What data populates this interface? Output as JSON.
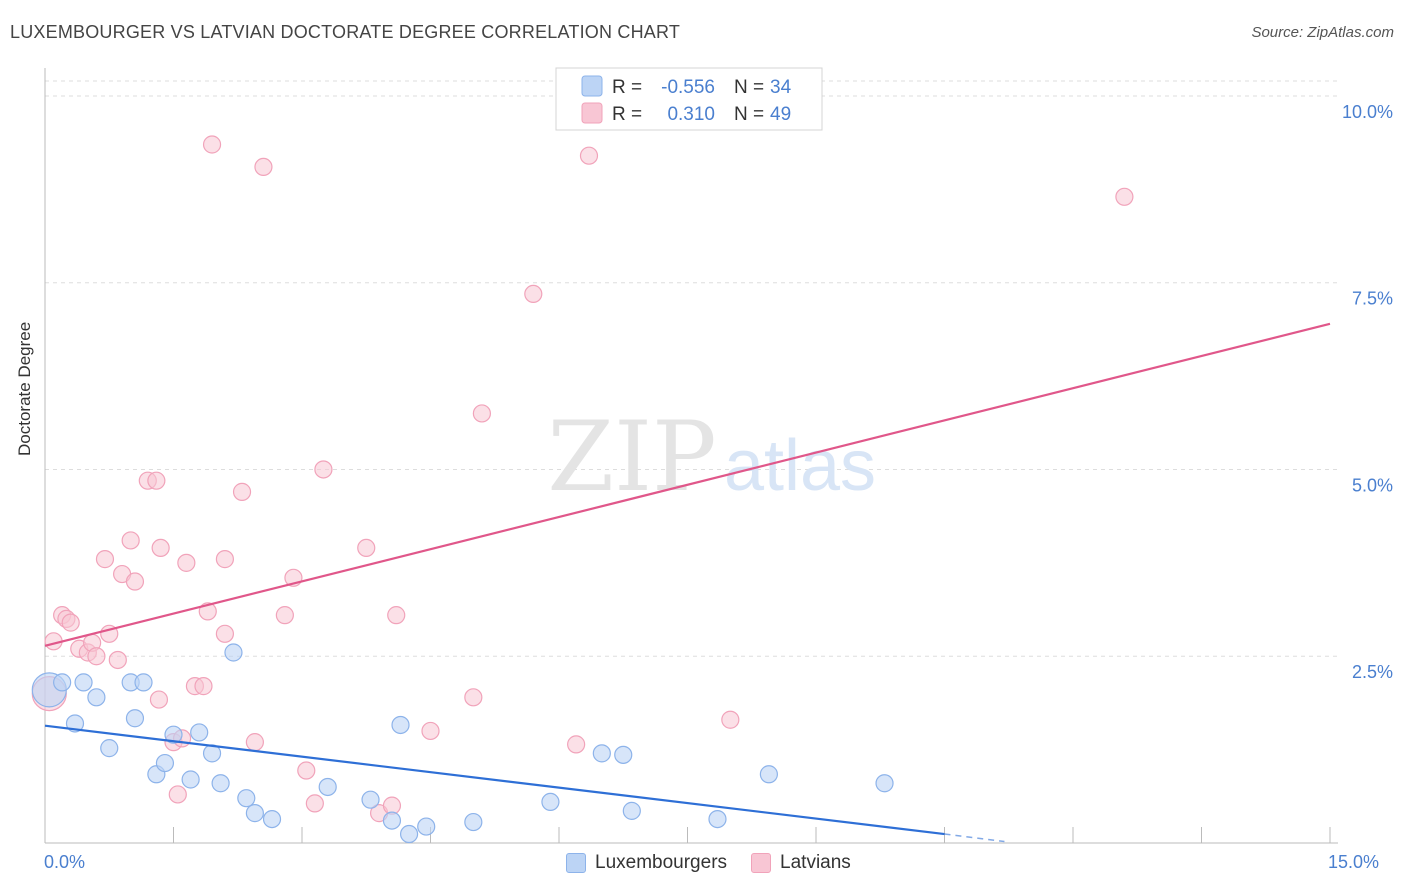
{
  "header": {
    "title": "LUXEMBOURGER VS LATVIAN DOCTORATE DEGREE CORRELATION CHART",
    "source": "Source: ZipAtlas.com"
  },
  "watermark": {
    "zip": "ZIP",
    "atlas": "atlas"
  },
  "colors": {
    "blue_fill": "#bcd4f5",
    "blue_stroke": "#8db3ea",
    "blue_line": "#2e6fd6",
    "pink_fill": "#f8c6d4",
    "pink_stroke": "#f1a3ba",
    "pink_line": "#e0578a",
    "axis_label": "#4a7fcf",
    "grid": "#dddddd"
  },
  "stats": {
    "series": [
      {
        "r_label": "R =",
        "r_value": "-0.556",
        "n_label": "N =",
        "n_value": "34"
      },
      {
        "r_label": "R =",
        "r_value": "0.310",
        "n_label": "N =",
        "n_value": "49"
      }
    ]
  },
  "legend": {
    "items": [
      "Luxembourgers",
      "Latvians"
    ]
  },
  "chart_data": {
    "type": "scatter",
    "xlabel": "",
    "ylabel": "Doctorate Degree",
    "xlim": [
      0,
      15
    ],
    "ylim": [
      0,
      10.2
    ],
    "x_ticks": [
      0,
      1.5,
      3,
      4.5,
      6,
      7.5,
      9,
      10.5,
      12,
      13.5,
      15
    ],
    "x_tick_labels": [
      "0.0%",
      "15.0%"
    ],
    "y_ticks": [
      2.5,
      5.0,
      7.5,
      10.0
    ],
    "y_tick_labels": [
      "2.5%",
      "5.0%",
      "7.5%",
      "10.0%"
    ],
    "series": [
      {
        "name": "Luxembourgers",
        "trend": {
          "x": [
            0,
            10.5
          ],
          "y": [
            1.57,
            0.12
          ],
          "dashed_to": [
            11.2,
            0.02
          ]
        },
        "points": [
          [
            0.05,
            2.05
          ],
          [
            0.2,
            2.15
          ],
          [
            0.35,
            1.6
          ],
          [
            0.45,
            2.15
          ],
          [
            0.6,
            1.95
          ],
          [
            0.75,
            1.27
          ],
          [
            1.0,
            2.15
          ],
          [
            1.05,
            1.67
          ],
          [
            1.15,
            2.15
          ],
          [
            1.3,
            0.92
          ],
          [
            1.4,
            1.07
          ],
          [
            1.5,
            1.45
          ],
          [
            1.7,
            0.85
          ],
          [
            1.8,
            1.48
          ],
          [
            1.95,
            1.2
          ],
          [
            2.05,
            0.8
          ],
          [
            2.2,
            2.55
          ],
          [
            2.35,
            0.6
          ],
          [
            2.45,
            0.4
          ],
          [
            2.65,
            0.32
          ],
          [
            3.3,
            0.75
          ],
          [
            3.8,
            0.58
          ],
          [
            4.05,
            0.3
          ],
          [
            4.15,
            1.58
          ],
          [
            4.25,
            0.12
          ],
          [
            4.45,
            0.22
          ],
          [
            5.0,
            0.28
          ],
          [
            5.9,
            0.55
          ],
          [
            6.5,
            1.2
          ],
          [
            6.75,
            1.18
          ],
          [
            6.85,
            0.43
          ],
          [
            7.85,
            0.32
          ],
          [
            8.45,
            0.92
          ],
          [
            9.8,
            0.8
          ]
        ]
      },
      {
        "name": "Latvians",
        "trend": {
          "x": [
            0,
            15
          ],
          "y": [
            2.64,
            6.95
          ]
        },
        "points": [
          [
            0.05,
            2.0
          ],
          [
            0.1,
            2.7
          ],
          [
            0.2,
            3.05
          ],
          [
            0.25,
            3.0
          ],
          [
            0.3,
            2.95
          ],
          [
            0.4,
            2.6
          ],
          [
            0.5,
            2.55
          ],
          [
            0.55,
            2.68
          ],
          [
            0.6,
            2.5
          ],
          [
            0.7,
            3.8
          ],
          [
            0.75,
            2.8
          ],
          [
            0.85,
            2.45
          ],
          [
            0.9,
            3.6
          ],
          [
            1.0,
            4.05
          ],
          [
            1.05,
            3.5
          ],
          [
            1.2,
            4.85
          ],
          [
            1.3,
            4.85
          ],
          [
            1.33,
            1.92
          ],
          [
            1.35,
            3.95
          ],
          [
            1.5,
            1.35
          ],
          [
            1.55,
            0.65
          ],
          [
            1.6,
            1.4
          ],
          [
            1.65,
            3.75
          ],
          [
            1.75,
            2.1
          ],
          [
            1.85,
            2.1
          ],
          [
            1.9,
            3.1
          ],
          [
            1.95,
            9.35
          ],
          [
            2.1,
            3.8
          ],
          [
            2.1,
            2.8
          ],
          [
            2.3,
            4.7
          ],
          [
            2.45,
            1.35
          ],
          [
            2.55,
            9.05
          ],
          [
            2.8,
            3.05
          ],
          [
            2.9,
            3.55
          ],
          [
            3.05,
            0.97
          ],
          [
            3.15,
            0.53
          ],
          [
            3.25,
            5.0
          ],
          [
            3.75,
            3.95
          ],
          [
            3.9,
            0.4
          ],
          [
            4.05,
            0.5
          ],
          [
            4.1,
            3.05
          ],
          [
            4.5,
            1.5
          ],
          [
            5.0,
            1.95
          ],
          [
            5.1,
            5.75
          ],
          [
            5.7,
            7.35
          ],
          [
            6.2,
            1.32
          ],
          [
            6.35,
            9.2
          ],
          [
            8.0,
            1.65
          ],
          [
            12.6,
            8.65
          ]
        ]
      }
    ]
  }
}
